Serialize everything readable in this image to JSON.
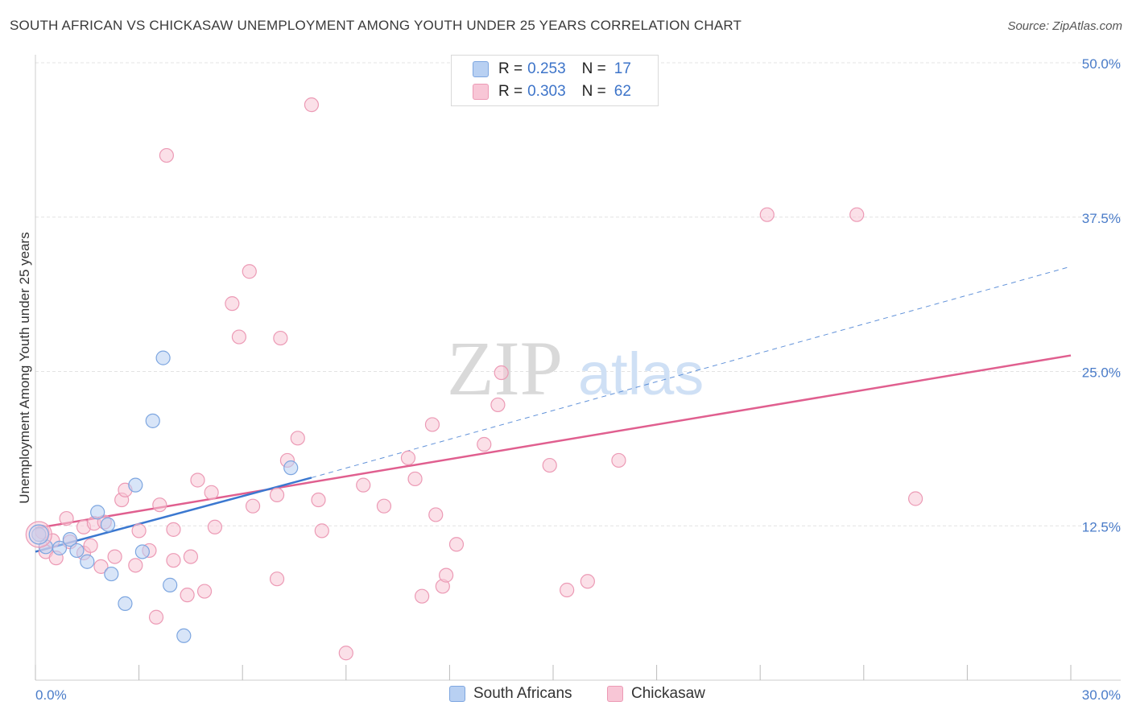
{
  "header": {
    "title": "SOUTH AFRICAN VS CHICKASAW UNEMPLOYMENT AMONG YOUTH UNDER 25 YEARS CORRELATION CHART",
    "source": "Source: ZipAtlas.com"
  },
  "watermark": {
    "zip": "ZIP",
    "atlas": "atlas"
  },
  "legend": {
    "rows": [
      {
        "r_label": "R =",
        "r_value": "0.253",
        "n_label": "N =",
        "n_value": "17",
        "fill": "#b8d0f2",
        "stroke": "#7da6e0"
      },
      {
        "r_label": "R =",
        "r_value": "0.303",
        "n_label": "N =",
        "n_value": "62",
        "fill": "#f8c6d6",
        "stroke": "#ec9ab5"
      }
    ]
  },
  "bottom_legend": [
    {
      "label": "South Africans",
      "fill": "#b8d0f2",
      "stroke": "#7da6e0"
    },
    {
      "label": "Chickasaw",
      "fill": "#f8c6d6",
      "stroke": "#ec9ab5"
    }
  ],
  "chart_data": {
    "type": "scatter",
    "title": "SOUTH AFRICAN VS CHICKASAW UNEMPLOYMENT AMONG YOUTH UNDER 25 YEARS CORRELATION CHART",
    "xlabel": "",
    "ylabel": "Unemployment Among Youth under 25 years",
    "xlim": [
      0,
      30
    ],
    "ylim": [
      0,
      50
    ],
    "x_tick_labels": [
      "0.0%",
      "30.0%"
    ],
    "y_ticks": [
      12.5,
      25.0,
      37.5,
      50.0
    ],
    "y_tick_labels": [
      "12.5%",
      "25.0%",
      "37.5%",
      "50.0%"
    ],
    "colors": {
      "south_africans": "#3b78d0",
      "chickasaw": "#e05f8f",
      "grid": "#e3e3e3"
    },
    "series": [
      {
        "name": "South Africans",
        "points": [
          [
            0.1,
            11.8
          ],
          [
            0.3,
            10.8
          ],
          [
            0.7,
            10.7
          ],
          [
            1.0,
            11.4
          ],
          [
            1.2,
            10.5
          ],
          [
            1.5,
            9.6
          ],
          [
            1.8,
            13.6
          ],
          [
            2.1,
            12.6
          ],
          [
            2.2,
            8.6
          ],
          [
            2.6,
            6.2
          ],
          [
            2.9,
            15.8
          ],
          [
            3.1,
            10.4
          ],
          [
            3.4,
            21.0
          ],
          [
            3.7,
            26.1
          ],
          [
            3.9,
            7.7
          ],
          [
            4.3,
            3.6
          ],
          [
            7.4,
            17.2
          ]
        ],
        "trend": {
          "x0": 0.0,
          "y0": 10.4,
          "x1": 8.0,
          "y1": 16.4,
          "dashed_to_x": 30.0,
          "dashed_to_y": 33.5
        }
      },
      {
        "name": "Chickasaw",
        "points": [
          [
            0.2,
            12.0
          ],
          [
            0.3,
            10.4
          ],
          [
            0.5,
            11.3
          ],
          [
            0.6,
            9.9
          ],
          [
            0.9,
            13.1
          ],
          [
            1.0,
            11.2
          ],
          [
            1.4,
            10.3
          ],
          [
            1.4,
            12.4
          ],
          [
            1.6,
            10.9
          ],
          [
            1.7,
            12.7
          ],
          [
            1.9,
            9.2
          ],
          [
            2.0,
            12.8
          ],
          [
            2.3,
            10.0
          ],
          [
            2.5,
            14.6
          ],
          [
            2.6,
            15.4
          ],
          [
            2.9,
            9.3
          ],
          [
            3.0,
            12.1
          ],
          [
            3.3,
            10.5
          ],
          [
            3.5,
            5.1
          ],
          [
            3.6,
            14.2
          ],
          [
            3.8,
            42.5
          ],
          [
            4.0,
            9.7
          ],
          [
            4.0,
            12.2
          ],
          [
            4.4,
            6.9
          ],
          [
            4.5,
            10.0
          ],
          [
            4.7,
            16.2
          ],
          [
            4.9,
            7.2
          ],
          [
            5.1,
            15.2
          ],
          [
            5.2,
            12.4
          ],
          [
            5.7,
            30.5
          ],
          [
            5.9,
            27.8
          ],
          [
            6.2,
            33.1
          ],
          [
            6.3,
            14.1
          ],
          [
            7.0,
            8.2
          ],
          [
            7.0,
            15.0
          ],
          [
            7.1,
            27.7
          ],
          [
            7.3,
            17.8
          ],
          [
            7.6,
            19.6
          ],
          [
            8.0,
            46.6
          ],
          [
            8.2,
            14.6
          ],
          [
            8.3,
            12.1
          ],
          [
            9.0,
            2.2
          ],
          [
            9.5,
            15.8
          ],
          [
            10.1,
            14.1
          ],
          [
            10.8,
            18.0
          ],
          [
            11.0,
            16.3
          ],
          [
            11.2,
            6.8
          ],
          [
            11.5,
            20.7
          ],
          [
            11.6,
            13.4
          ],
          [
            11.8,
            7.6
          ],
          [
            11.9,
            8.5
          ],
          [
            12.2,
            11.0
          ],
          [
            13.0,
            19.1
          ],
          [
            13.4,
            22.3
          ],
          [
            13.5,
            24.9
          ],
          [
            14.9,
            17.4
          ],
          [
            15.4,
            7.3
          ],
          [
            16.0,
            8.0
          ],
          [
            16.9,
            17.8
          ],
          [
            21.2,
            37.7
          ],
          [
            23.8,
            37.7
          ],
          [
            25.5,
            14.7
          ]
        ],
        "trend": {
          "x0": 0.0,
          "y0": 12.3,
          "x1": 30.0,
          "y1": 26.3
        }
      }
    ]
  }
}
